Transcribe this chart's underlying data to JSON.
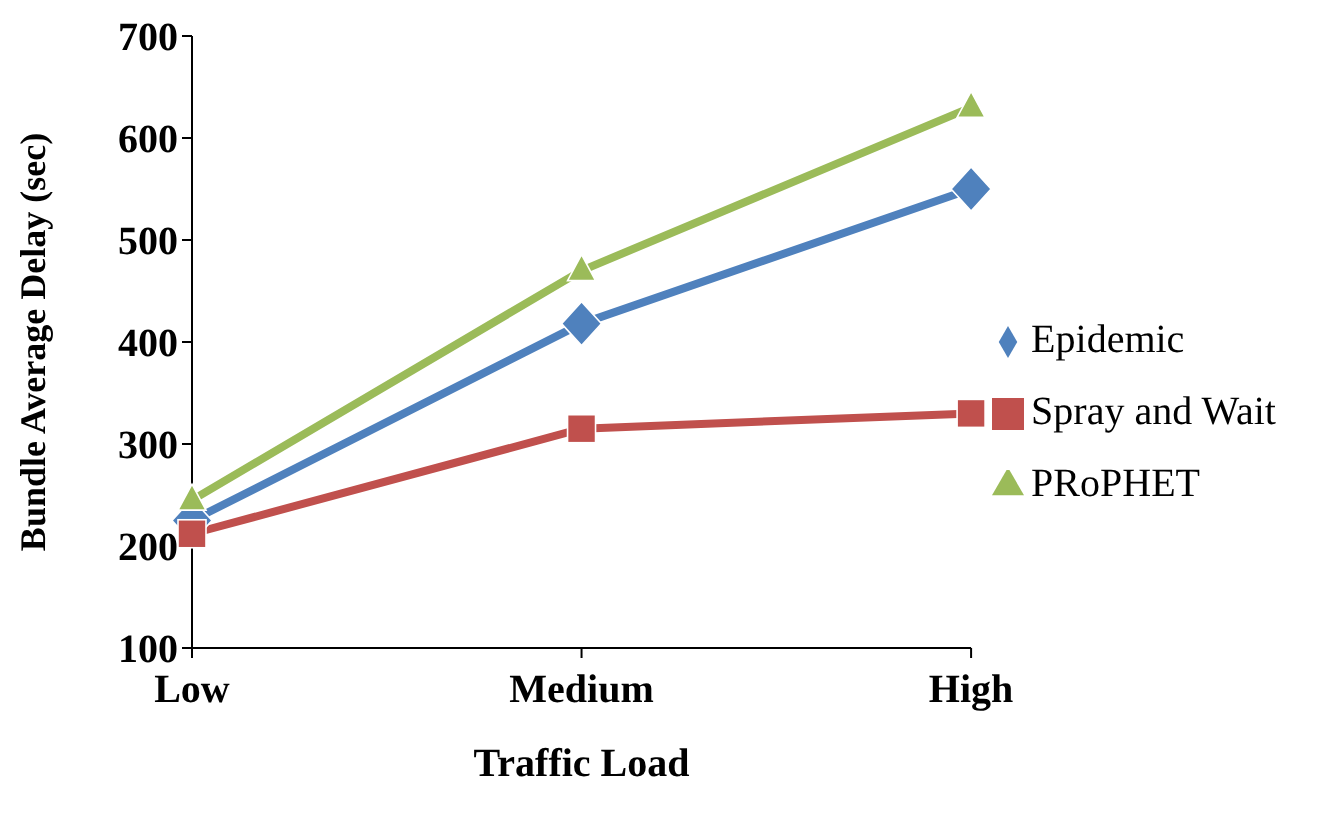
{
  "chart_data": {
    "type": "line",
    "xlabel": "Traffic Load",
    "ylabel": "Bundle Average Delay (sec)",
    "categories": [
      "Low",
      "Medium",
      "High"
    ],
    "series": [
      {
        "name": "Epidemic",
        "color": "#4f81bd",
        "marker": "diamond",
        "values": [
          225,
          418,
          550
        ]
      },
      {
        "name": "Spray and Wait",
        "color": "#c0504d",
        "marker": "square",
        "values": [
          212,
          315,
          330
        ]
      },
      {
        "name": "PRoPHET",
        "color": "#9bbb59",
        "marker": "triangle",
        "values": [
          245,
          470,
          630
        ]
      }
    ],
    "ylim": [
      100,
      700
    ],
    "yticks": [
      100,
      200,
      300,
      400,
      500,
      600,
      700
    ],
    "grid": false,
    "legend": "right"
  }
}
